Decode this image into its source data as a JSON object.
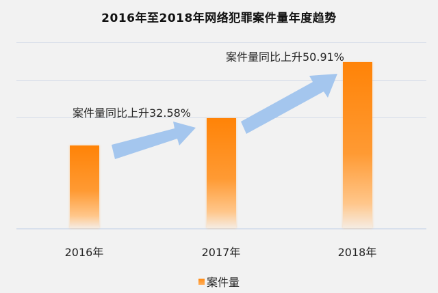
{
  "chart_data": {
    "type": "bar",
    "title": "2016年至2018年网络犯罪案件量年度趋势",
    "categories": [
      "2016年",
      "2017年",
      "2018年"
    ],
    "series": [
      {
        "name": "案件量",
        "values": [
          100,
          132.58,
          200.08
        ]
      }
    ],
    "value_note": "relative values derived from bar heights; no y-axis ticks shown",
    "annotations": [
      {
        "text": "案件量同比上升32.58%",
        "from": "2016年",
        "to": "2017年"
      },
      {
        "text": "案件量同比上升50.91%",
        "from": "2017年",
        "to": "2018年"
      }
    ],
    "xlabel": "",
    "ylabel": "",
    "grid": true,
    "legend_position": "bottom",
    "colors": {
      "bar_top": "#ff8307",
      "bar_bottom": "#f6ece2",
      "arrow": "#a4c6ee",
      "background": "#f2f2f2",
      "grid": "#d5dce8"
    }
  },
  "title": "2016年至2018年网络犯罪案件量年度趋势",
  "annotations": {
    "first": "案件量同比上升32.58%",
    "second": "案件量同比上升50.91%"
  },
  "x_labels": [
    "2016年",
    "2017年",
    "2018年"
  ],
  "legend": {
    "label": "案件量"
  }
}
